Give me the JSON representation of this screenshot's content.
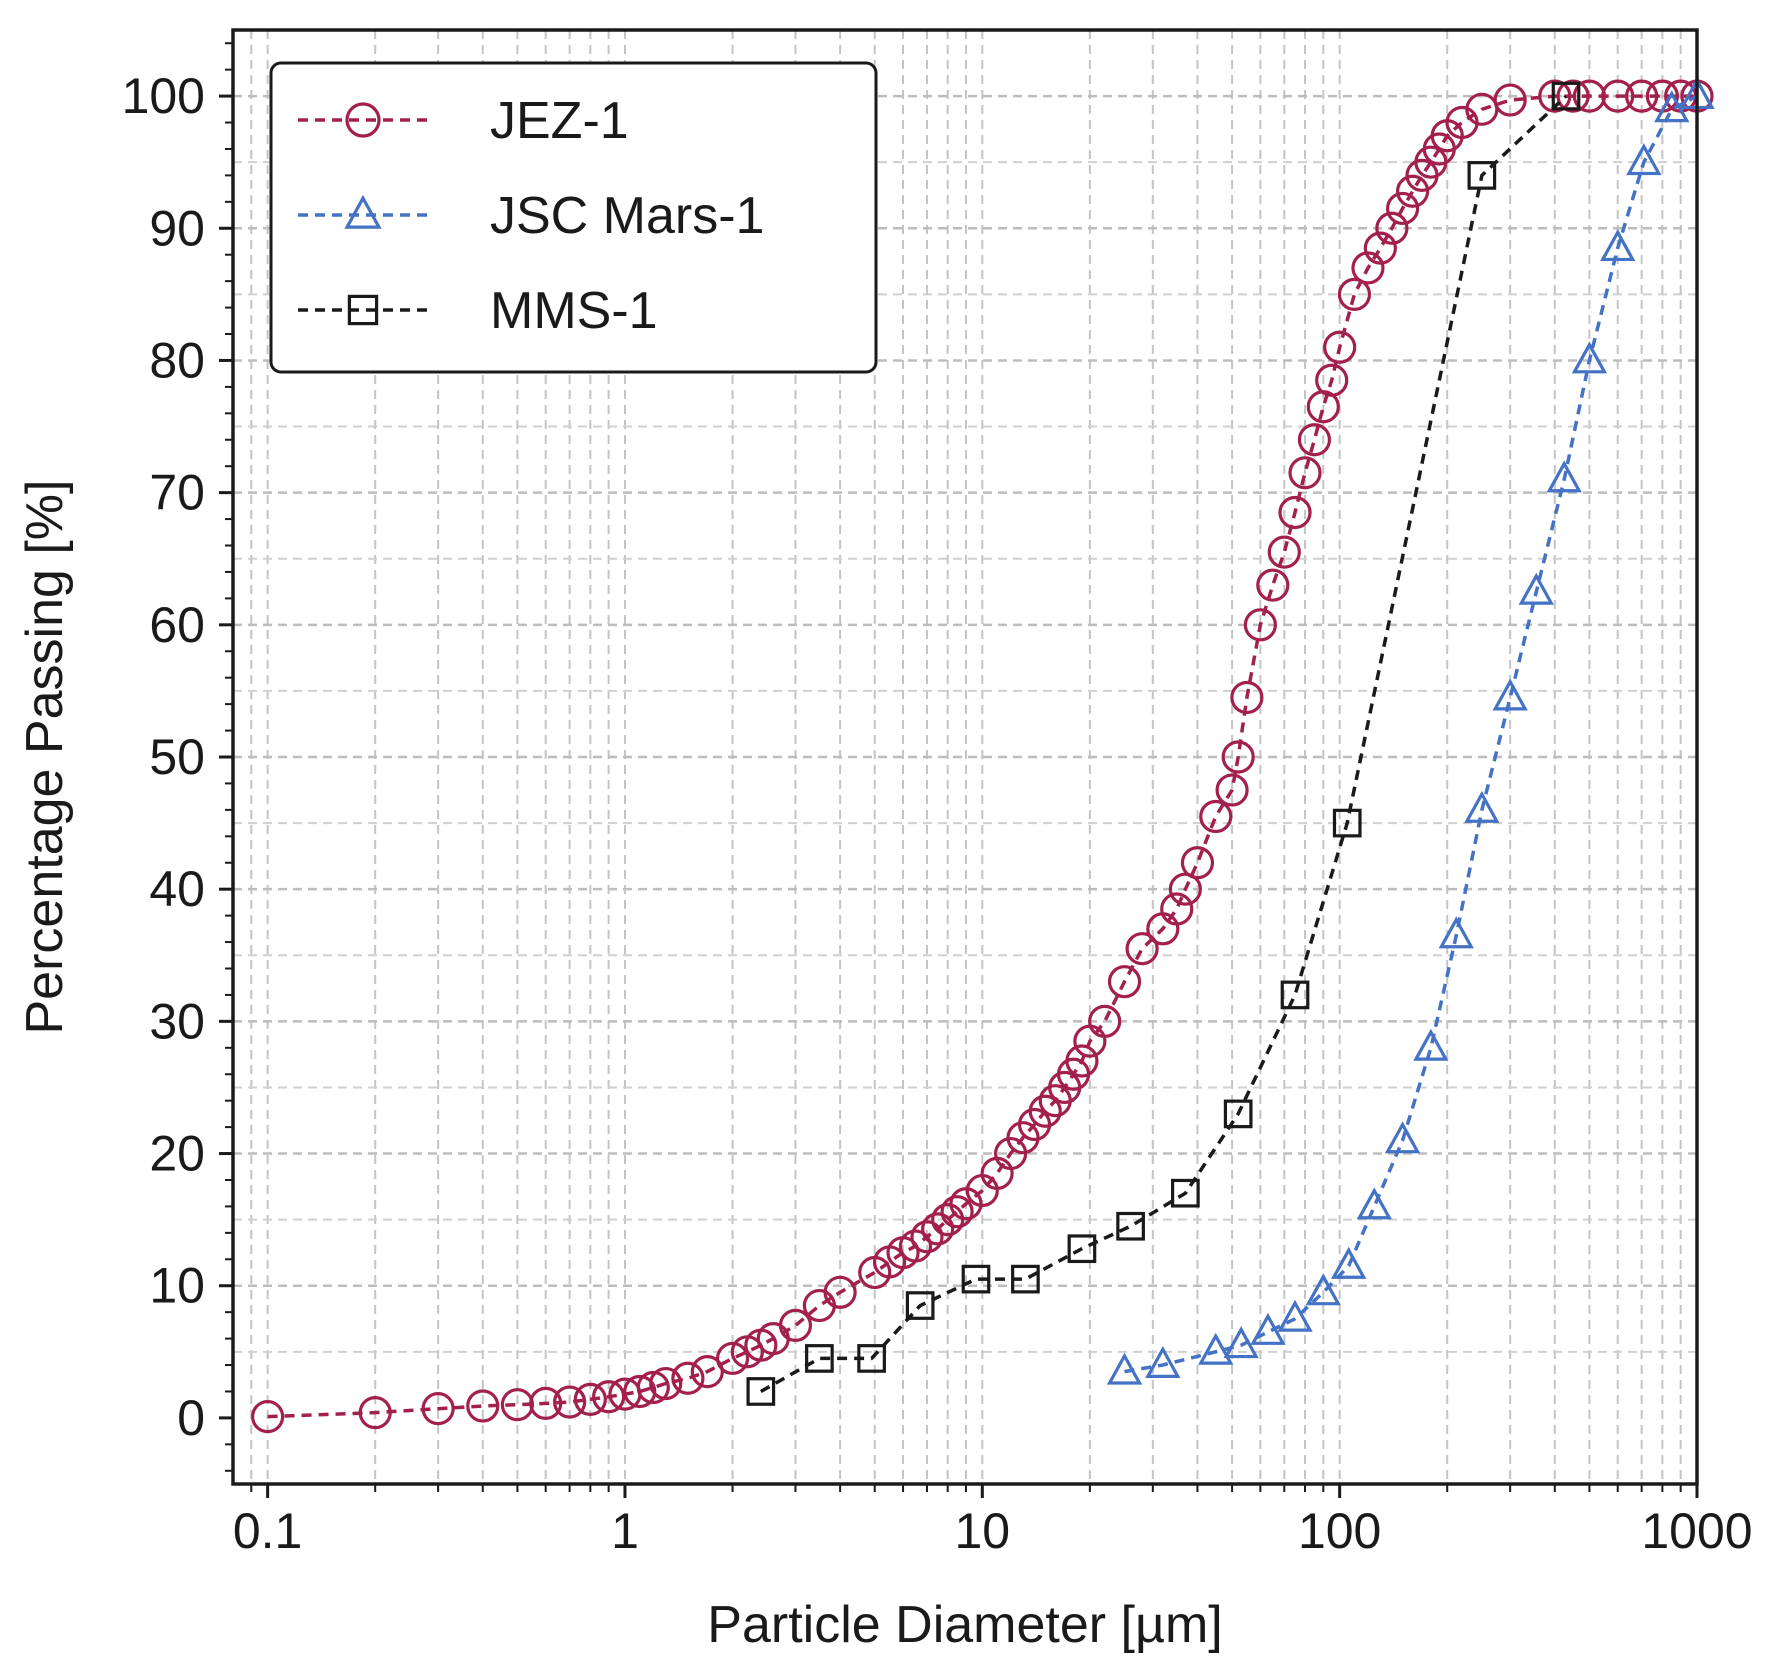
{
  "chart_data": {
    "type": "scatter",
    "xscale": "log",
    "xlabel": "Particle Diameter [µm]",
    "ylabel": "Percentage Passing [%]",
    "xlim": [
      0.08,
      1000
    ],
    "ylim": [
      -5,
      105
    ],
    "xticks": [
      0.1,
      1,
      10,
      100,
      1000
    ],
    "xtick_labels": [
      "0.1",
      "1",
      "10",
      "100",
      "1000"
    ],
    "yticks": [
      0,
      10,
      20,
      30,
      40,
      50,
      60,
      70,
      80,
      90,
      100
    ],
    "ytick_labels": [
      "0",
      "10",
      "20",
      "30",
      "40",
      "50",
      "60",
      "70",
      "80",
      "90",
      "100"
    ],
    "grid": true,
    "legend_position": "top-left",
    "series": [
      {
        "name": "JEZ-1",
        "color": "#a3204e",
        "marker": "circle",
        "linestyle": "dashed",
        "x": [
          0.1,
          0.2,
          0.3,
          0.4,
          0.5,
          0.6,
          0.7,
          0.8,
          0.9,
          1.0,
          1.1,
          1.2,
          1.3,
          1.5,
          1.7,
          2.0,
          2.2,
          2.4,
          2.6,
          3.0,
          3.5,
          4.0,
          5.0,
          5.5,
          6.0,
          6.5,
          7.0,
          7.5,
          8.0,
          8.5,
          9.0,
          10,
          11,
          12,
          13,
          14,
          15,
          16,
          17,
          18,
          19,
          20,
          22,
          25,
          28,
          32,
          35,
          37,
          40,
          45,
          50,
          52,
          55,
          60,
          65,
          70,
          75,
          80,
          85,
          90,
          95,
          100,
          110,
          120,
          130,
          140,
          150,
          160,
          170,
          180,
          190,
          200,
          220,
          250,
          300,
          400,
          450,
          500,
          600,
          700,
          800,
          900,
          1000
        ],
        "y": [
          0.1,
          0.4,
          0.7,
          0.9,
          1.0,
          1.1,
          1.2,
          1.4,
          1.6,
          1.8,
          2.0,
          2.3,
          2.6,
          3.0,
          3.5,
          4.5,
          5.0,
          5.5,
          6.0,
          7.0,
          8.5,
          9.5,
          11.0,
          11.8,
          12.5,
          13.0,
          13.7,
          14.3,
          15.0,
          15.6,
          16.2,
          17.2,
          18.5,
          20.0,
          21.2,
          22.2,
          23.2,
          24.0,
          25.0,
          26.0,
          27.0,
          28.5,
          30.0,
          33.0,
          35.5,
          37.0,
          38.5,
          40.0,
          42.0,
          45.5,
          47.5,
          50.0,
          54.5,
          60.0,
          63.0,
          65.5,
          68.5,
          71.5,
          74.0,
          76.5,
          78.5,
          81.0,
          85.0,
          87.0,
          88.5,
          90.0,
          91.5,
          92.8,
          94.0,
          95.0,
          96.0,
          97.0,
          98.0,
          99.0,
          99.7,
          100,
          100,
          100,
          100,
          100,
          100,
          100,
          100
        ]
      },
      {
        "name": "JSC Mars-1",
        "color": "#4472c4",
        "marker": "triangle",
        "linestyle": "dashed",
        "x": [
          25,
          32,
          45,
          53,
          63,
          75,
          90,
          106,
          125,
          150,
          180,
          212,
          250,
          300,
          355,
          425,
          500,
          600,
          710,
          850,
          1000
        ],
        "y": [
          3.5,
          4.0,
          5.0,
          5.5,
          6.5,
          7.5,
          9.5,
          11.5,
          16.0,
          21.0,
          28.0,
          36.5,
          46.0,
          54.5,
          62.5,
          71.0,
          80.0,
          88.5,
          95.0,
          99.0,
          100
        ]
      },
      {
        "name": "MMS-1",
        "color": "#1a1a1a",
        "marker": "square",
        "linestyle": "dashed",
        "x": [
          2.4,
          3.5,
          4.9,
          6.7,
          9.6,
          13.2,
          19,
          26,
          37,
          52,
          75,
          105,
          250,
          430
        ],
        "y": [
          2.0,
          4.5,
          4.5,
          8.5,
          10.5,
          10.5,
          12.8,
          14.5,
          17.0,
          23.0,
          32.0,
          45.0,
          94.0,
          100
        ]
      }
    ]
  }
}
